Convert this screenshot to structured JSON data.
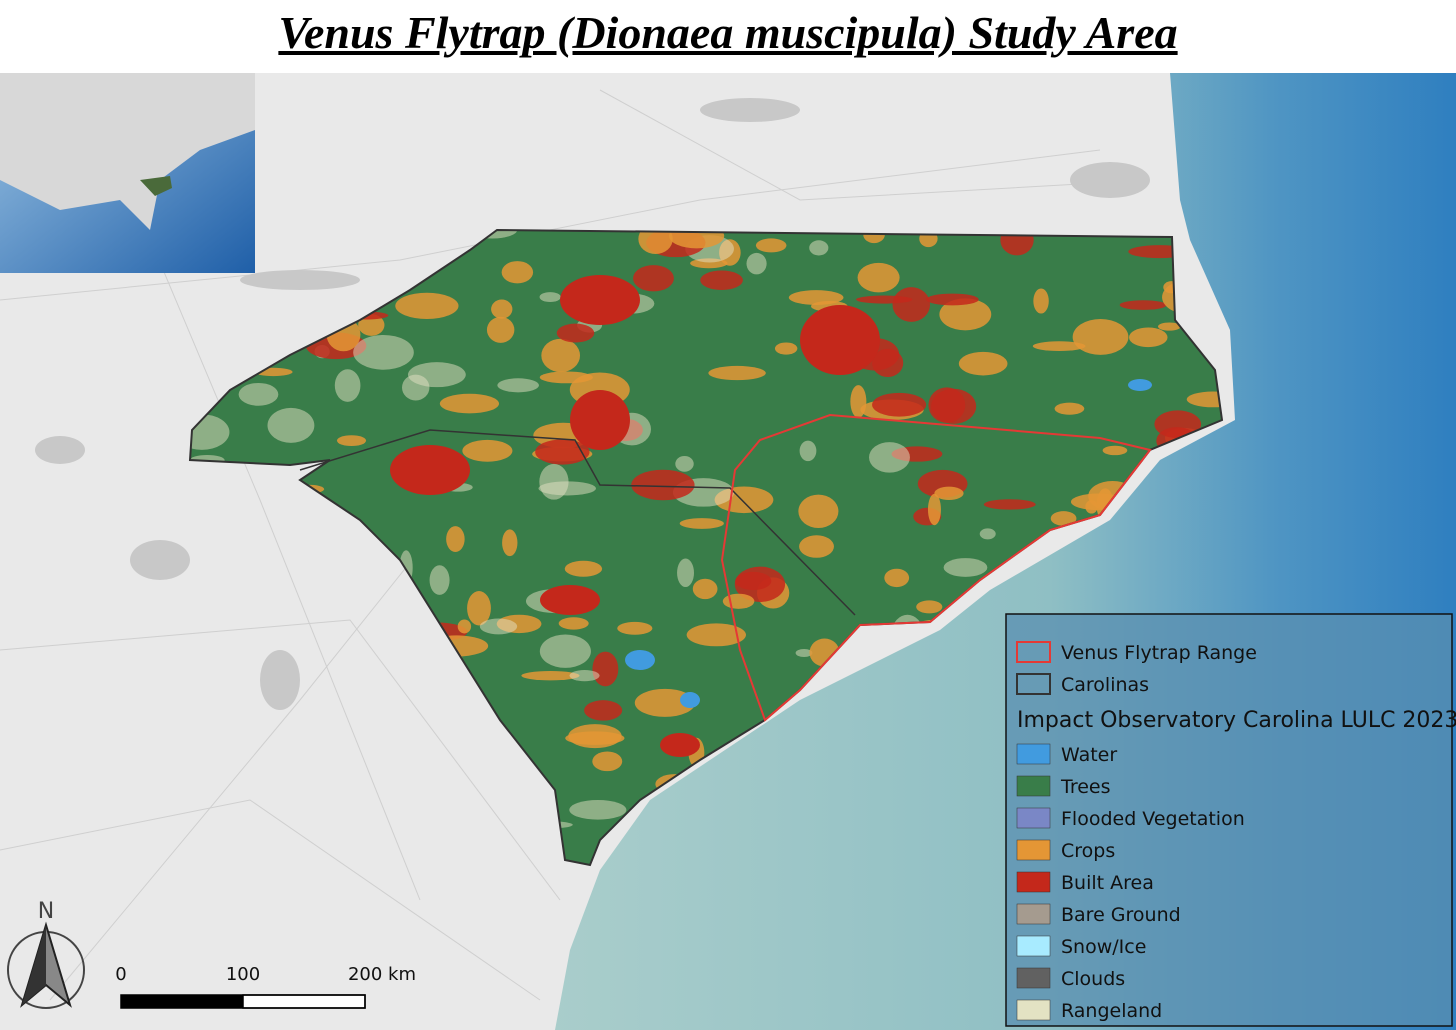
{
  "title": "Venus Flytrap (Dionaea muscipula) Study Area",
  "legend": {
    "outlines": [
      {
        "label": "Venus Flytrap Range",
        "color": "#e53935"
      },
      {
        "label": "Carolinas",
        "color": "#333333"
      }
    ],
    "heading": "Impact Observatory Carolina LULC 2023",
    "classes": [
      {
        "label": "Water",
        "color": "#419bdf"
      },
      {
        "label": "Trees",
        "color": "#397d49"
      },
      {
        "label": "Flooded Vegetation",
        "color": "#7a87c6"
      },
      {
        "label": "Crops",
        "color": "#e49635"
      },
      {
        "label": "Built Area",
        "color": "#c4281b"
      },
      {
        "label": "Bare Ground",
        "color": "#a59b8f"
      },
      {
        "label": "Snow/Ice",
        "color": "#a8ebff"
      },
      {
        "label": "Clouds",
        "color": "#616161"
      },
      {
        "label": "Rangeland",
        "color": "#e3e2c3"
      }
    ]
  },
  "scale_bar": {
    "labels": [
      "0",
      "100",
      "200 km"
    ]
  },
  "north_arrow": {
    "label": "N"
  }
}
